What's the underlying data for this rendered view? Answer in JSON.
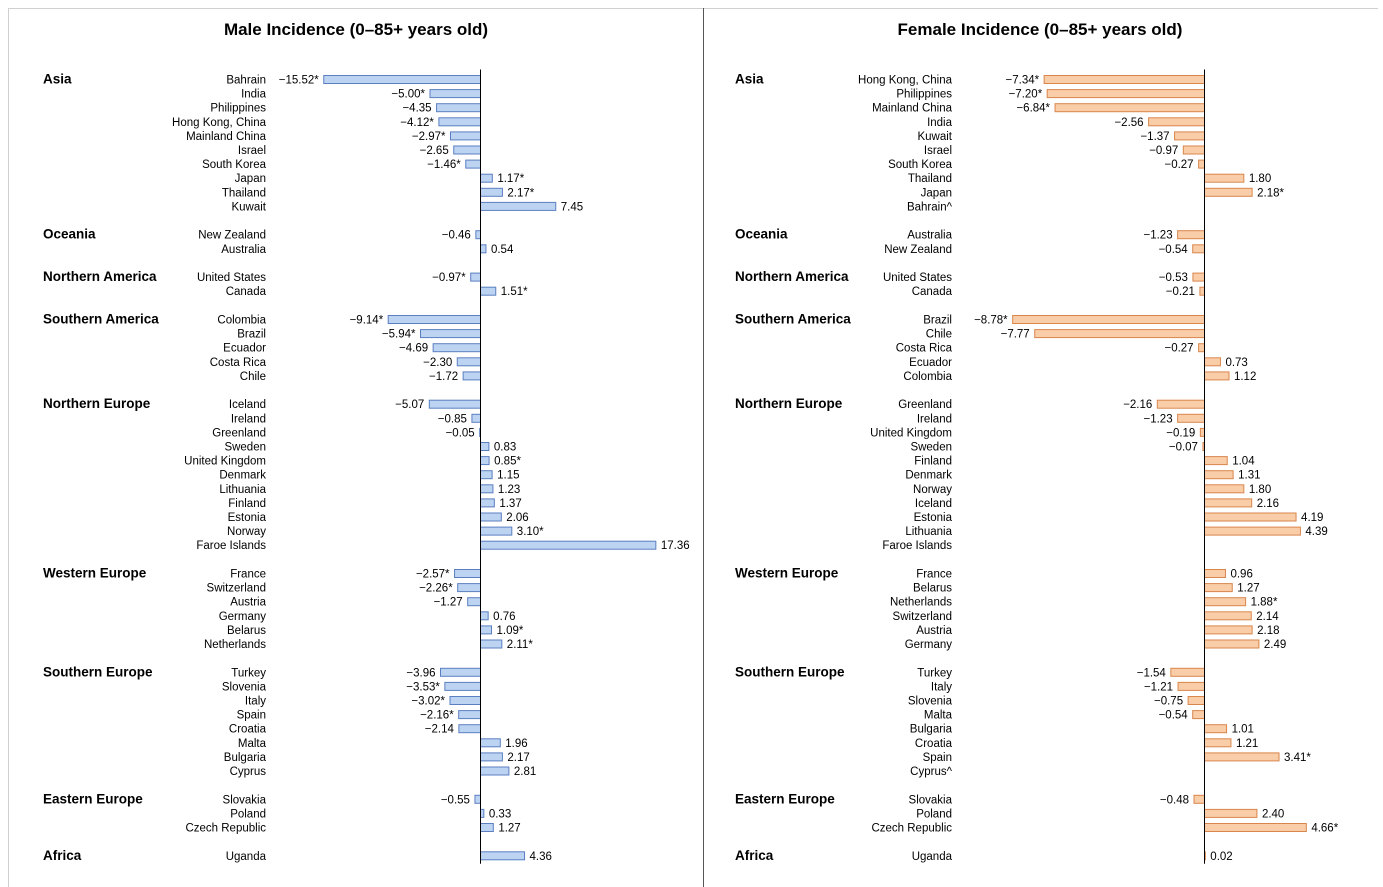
{
  "chart_data": [
    {
      "type": "bar",
      "orientation": "horizontal",
      "title": "Male Incidence (0–85+ years old)",
      "color": "#bcd3f2",
      "edge_color": "#5b7fc1",
      "groups": [
        {
          "region": "Asia",
          "rows": [
            {
              "country": "Bahrain",
              "value": -15.52,
              "label": "−15.52*"
            },
            {
              "country": "India",
              "value": -5.0,
              "label": "−5.00*"
            },
            {
              "country": "Philippines",
              "value": -4.35,
              "label": "−4.35"
            },
            {
              "country": "Hong Kong, China",
              "value": -4.12,
              "label": "−4.12*"
            },
            {
              "country": "Mainland China",
              "value": -2.97,
              "label": "−2.97*"
            },
            {
              "country": "Israel",
              "value": -2.65,
              "label": "−2.65"
            },
            {
              "country": "South Korea",
              "value": -1.46,
              "label": "−1.46*"
            },
            {
              "country": "Japan",
              "value": 1.17,
              "label": "1.17*"
            },
            {
              "country": "Thailand",
              "value": 2.17,
              "label": "2.17*"
            },
            {
              "country": "Kuwait",
              "value": 7.45,
              "label": "7.45"
            }
          ]
        },
        {
          "region": "Oceania",
          "rows": [
            {
              "country": "New Zealand",
              "value": -0.46,
              "label": "−0.46"
            },
            {
              "country": "Australia",
              "value": 0.54,
              "label": "0.54"
            }
          ]
        },
        {
          "region": "Northern America",
          "rows": [
            {
              "country": "United States",
              "value": -0.97,
              "label": "−0.97*"
            },
            {
              "country": "Canada",
              "value": 1.51,
              "label": "1.51*"
            }
          ]
        },
        {
          "region": "Southern America",
          "rows": [
            {
              "country": "Colombia",
              "value": -9.14,
              "label": "−9.14*"
            },
            {
              "country": "Brazil",
              "value": -5.94,
              "label": "−5.94*"
            },
            {
              "country": "Ecuador",
              "value": -4.69,
              "label": "−4.69"
            },
            {
              "country": "Costa Rica",
              "value": -2.3,
              "label": "−2.30"
            },
            {
              "country": "Chile",
              "value": -1.72,
              "label": "−1.72"
            }
          ]
        },
        {
          "region": "Northern Europe",
          "rows": [
            {
              "country": "Iceland",
              "value": -5.07,
              "label": "−5.07"
            },
            {
              "country": "Ireland",
              "value": -0.85,
              "label": "−0.85"
            },
            {
              "country": "Greenland",
              "value": -0.05,
              "label": "−0.05"
            },
            {
              "country": "Sweden",
              "value": 0.83,
              "label": "0.83"
            },
            {
              "country": "United Kingdom",
              "value": 0.85,
              "label": "0.85*"
            },
            {
              "country": "Denmark",
              "value": 1.15,
              "label": "1.15"
            },
            {
              "country": "Lithuania",
              "value": 1.23,
              "label": "1.23"
            },
            {
              "country": "Finland",
              "value": 1.37,
              "label": "1.37"
            },
            {
              "country": "Estonia",
              "value": 2.06,
              "label": "2.06"
            },
            {
              "country": "Norway",
              "value": 3.1,
              "label": "3.10*"
            },
            {
              "country": "Faroe Islands",
              "value": 17.36,
              "label": "17.36"
            }
          ]
        },
        {
          "region": "Western Europe",
          "rows": [
            {
              "country": "France",
              "value": -2.57,
              "label": "−2.57*"
            },
            {
              "country": "Switzerland",
              "value": -2.26,
              "label": "−2.26*"
            },
            {
              "country": "Austria",
              "value": -1.27,
              "label": "−1.27"
            },
            {
              "country": "Germany",
              "value": 0.76,
              "label": "0.76"
            },
            {
              "country": "Belarus",
              "value": 1.09,
              "label": "1.09*"
            },
            {
              "country": "Netherlands",
              "value": 2.11,
              "label": "2.11*"
            }
          ]
        },
        {
          "region": "Southern Europe",
          "rows": [
            {
              "country": "Turkey",
              "value": -3.96,
              "label": "−3.96"
            },
            {
              "country": "Slovenia",
              "value": -3.53,
              "label": "−3.53*"
            },
            {
              "country": "Italy",
              "value": -3.02,
              "label": "−3.02*"
            },
            {
              "country": "Spain",
              "value": -2.16,
              "label": "−2.16*"
            },
            {
              "country": "Croatia",
              "value": -2.14,
              "label": "−2.14"
            },
            {
              "country": "Malta",
              "value": 1.96,
              "label": "1.96"
            },
            {
              "country": "Bulgaria",
              "value": 2.17,
              "label": "2.17"
            },
            {
              "country": "Cyprus",
              "value": 2.81,
              "label": "2.81"
            }
          ]
        },
        {
          "region": "Eastern Europe",
          "rows": [
            {
              "country": "Slovakia",
              "value": -0.55,
              "label": "−0.55"
            },
            {
              "country": "Poland",
              "value": 0.33,
              "label": "0.33"
            },
            {
              "country": "Czech Republic",
              "value": 1.27,
              "label": "1.27"
            }
          ]
        },
        {
          "region": "Africa",
          "rows": [
            {
              "country": "Uganda",
              "value": 4.36,
              "label": "4.36"
            }
          ]
        }
      ]
    },
    {
      "type": "bar",
      "orientation": "horizontal",
      "title": "Female Incidence (0–85+ years old)",
      "color": "#f9cda8",
      "edge_color": "#d9864c",
      "groups": [
        {
          "region": "Asia",
          "rows": [
            {
              "country": "Hong Kong, China",
              "value": -7.34,
              "label": "−7.34*"
            },
            {
              "country": "Philippines",
              "value": -7.2,
              "label": "−7.20*"
            },
            {
              "country": "Mainland China",
              "value": -6.84,
              "label": "−6.84*"
            },
            {
              "country": "India",
              "value": -2.56,
              "label": "−2.56"
            },
            {
              "country": "Kuwait",
              "value": -1.37,
              "label": "−1.37"
            },
            {
              "country": "Israel",
              "value": -0.97,
              "label": "−0.97"
            },
            {
              "country": "South Korea",
              "value": -0.27,
              "label": "−0.27"
            },
            {
              "country": "Thailand",
              "value": 1.8,
              "label": "1.80"
            },
            {
              "country": "Japan",
              "value": 2.18,
              "label": "2.18*"
            },
            {
              "country": "Bahrain^",
              "value": null,
              "label": ""
            }
          ]
        },
        {
          "region": "Oceania",
          "rows": [
            {
              "country": "Australia",
              "value": -1.23,
              "label": "−1.23"
            },
            {
              "country": "New Zealand",
              "value": -0.54,
              "label": "−0.54"
            }
          ]
        },
        {
          "region": "Northern America",
          "rows": [
            {
              "country": "United States",
              "value": -0.53,
              "label": "−0.53"
            },
            {
              "country": "Canada",
              "value": -0.21,
              "label": "−0.21"
            }
          ]
        },
        {
          "region": "Southern America",
          "rows": [
            {
              "country": "Brazil",
              "value": -8.78,
              "label": "−8.78*"
            },
            {
              "country": "Chile",
              "value": -7.77,
              "label": "−7.77"
            },
            {
              "country": "Costa Rica",
              "value": -0.27,
              "label": "−0.27"
            },
            {
              "country": "Ecuador",
              "value": 0.73,
              "label": "0.73"
            },
            {
              "country": "Colombia",
              "value": 1.12,
              "label": "1.12"
            }
          ]
        },
        {
          "region": "Northern Europe",
          "rows": [
            {
              "country": "Greenland",
              "value": -2.16,
              "label": "−2.16"
            },
            {
              "country": "Ireland",
              "value": -1.23,
              "label": "−1.23"
            },
            {
              "country": "United Kingdom",
              "value": -0.19,
              "label": "−0.19"
            },
            {
              "country": "Sweden",
              "value": -0.07,
              "label": "−0.07"
            },
            {
              "country": "Finland",
              "value": 1.04,
              "label": "1.04"
            },
            {
              "country": "Denmark",
              "value": 1.31,
              "label": "1.31"
            },
            {
              "country": "Norway",
              "value": 1.8,
              "label": "1.80"
            },
            {
              "country": "Iceland",
              "value": 2.16,
              "label": "2.16"
            },
            {
              "country": "Estonia",
              "value": 4.19,
              "label": "4.19"
            },
            {
              "country": "Lithuania",
              "value": 4.39,
              "label": "4.39"
            },
            {
              "country": "Faroe Islands",
              "value": null,
              "label": ""
            }
          ]
        },
        {
          "region": "Western Europe",
          "rows": [
            {
              "country": "France",
              "value": 0.96,
              "label": "0.96"
            },
            {
              "country": "Belarus",
              "value": 1.27,
              "label": "1.27"
            },
            {
              "country": "Netherlands",
              "value": 1.88,
              "label": "1.88*"
            },
            {
              "country": "Switzerland",
              "value": 2.14,
              "label": "2.14"
            },
            {
              "country": "Austria",
              "value": 2.18,
              "label": "2.18"
            },
            {
              "country": "Germany",
              "value": 2.49,
              "label": "2.49"
            }
          ]
        },
        {
          "region": "Southern Europe",
          "rows": [
            {
              "country": "Turkey",
              "value": -1.54,
              "label": "−1.54"
            },
            {
              "country": "Italy",
              "value": -1.21,
              "label": "−1.21"
            },
            {
              "country": "Slovenia",
              "value": -0.75,
              "label": "−0.75"
            },
            {
              "country": "Malta",
              "value": -0.54,
              "label": "−0.54"
            },
            {
              "country": "Bulgaria",
              "value": 1.01,
              "label": "1.01"
            },
            {
              "country": "Croatia",
              "value": 1.21,
              "label": "1.21"
            },
            {
              "country": "Spain",
              "value": 3.41,
              "label": "3.41*"
            },
            {
              "country": "Cyprus^",
              "value": null,
              "label": ""
            }
          ]
        },
        {
          "region": "Eastern Europe",
          "rows": [
            {
              "country": "Slovakia",
              "value": -0.48,
              "label": "−0.48"
            },
            {
              "country": "Poland",
              "value": 2.4,
              "label": "2.40"
            },
            {
              "country": "Czech Republic",
              "value": 4.66,
              "label": "4.66*"
            }
          ]
        },
        {
          "region": "Africa",
          "rows": [
            {
              "country": "Uganda",
              "value": 0.02,
              "label": "0.02"
            }
          ]
        }
      ]
    }
  ]
}
